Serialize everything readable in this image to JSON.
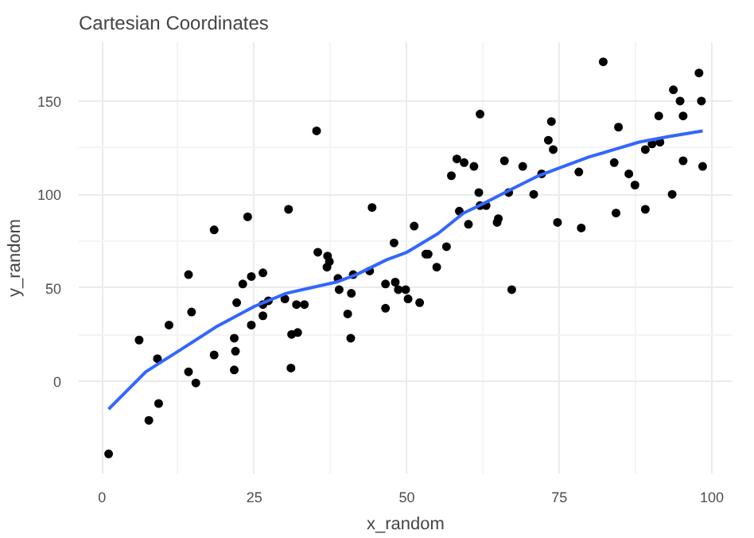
{
  "chart_data": {
    "type": "scatter",
    "title": "Cartesian Coordinates",
    "xlabel": "x_random",
    "ylabel": "y_random",
    "xlim": [
      -3.8,
      103.4
    ],
    "ylim": [
      -49.5,
      181.5
    ],
    "xticks": [
      0,
      25,
      50,
      75,
      100
    ],
    "yticks": [
      0,
      50,
      100,
      150
    ],
    "grid": true,
    "series": [
      {
        "marker": "circle",
        "color": "#000000",
        "x": [
          1.1,
          7.7,
          6.1,
          9.3,
          9.1,
          11.0,
          14.2,
          14.2,
          14.7,
          15.4,
          18.4,
          18.4,
          21.7,
          21.9,
          21.7,
          22.1,
          23.1,
          23.9,
          24.5,
          24.5,
          26.4,
          26.4,
          26.4,
          27.3,
          30.0,
          30.6,
          31.1,
          32.1,
          31.0,
          31.9,
          33.2,
          35.2,
          35.4,
          37.0,
          36.9,
          37.3,
          38.7,
          38.9,
          40.3,
          40.9,
          40.8,
          41.2,
          43.9,
          44.3,
          46.5,
          46.5,
          47.9,
          48.1,
          48.6,
          49.8,
          50.2,
          52.1,
          51.2,
          53.1,
          53.5,
          54.9,
          56.5,
          57.3,
          58.2,
          59.4,
          58.6,
          60.1,
          61.0,
          62.0,
          61.8,
          62.0,
          63.0,
          64.8,
          65.0,
          66.0,
          66.7,
          67.2,
          69.0,
          70.8,
          72.1,
          73.2,
          73.7,
          74.0,
          74.7,
          78.2,
          78.6,
          82.2,
          84.0,
          84.3,
          84.7,
          86.4,
          87.4,
          89.1,
          89.1,
          90.2,
          91.5,
          91.3,
          93.5,
          93.7,
          94.8,
          95.3,
          95.3,
          97.9,
          98.3,
          98.5
        ],
        "values": [
          -39,
          -21,
          22,
          -12,
          12,
          30,
          57,
          5,
          37,
          -1,
          81,
          14,
          23,
          16,
          6,
          42,
          52,
          88,
          30,
          56,
          58,
          41,
          35,
          43,
          44,
          92,
          25,
          26,
          7,
          41,
          41,
          134,
          69,
          67,
          61,
          64,
          55,
          49,
          36,
          47,
          23,
          57,
          59,
          93,
          52,
          39,
          74,
          53,
          49,
          49,
          44,
          42,
          83,
          68,
          68,
          61,
          72,
          110,
          119,
          117,
          91,
          84,
          115,
          143,
          101,
          94,
          94,
          85,
          87,
          118,
          101,
          49,
          115,
          100,
          111,
          129,
          139,
          124,
          85,
          112,
          82,
          171,
          117,
          90,
          136,
          111,
          105,
          92,
          124,
          127,
          128,
          142,
          100,
          156,
          150,
          142,
          118,
          165,
          150,
          115
        ]
      },
      {
        "type": "line",
        "color": "#3366ff",
        "x": [
          1.1,
          7.2,
          12.5,
          18.7,
          25,
          30.2,
          34.3,
          38.4,
          41.7,
          46.7,
          50,
          55.1,
          59.3,
          62.5,
          66.7,
          71.6,
          74.9,
          79.8,
          84,
          88.1,
          93,
          98.5
        ],
        "values": [
          -15,
          5,
          16,
          29,
          40,
          47,
          50,
          53,
          57,
          65,
          69,
          79,
          90,
          95,
          102,
          110,
          114,
          120,
          124,
          128,
          131,
          134
        ]
      }
    ]
  }
}
